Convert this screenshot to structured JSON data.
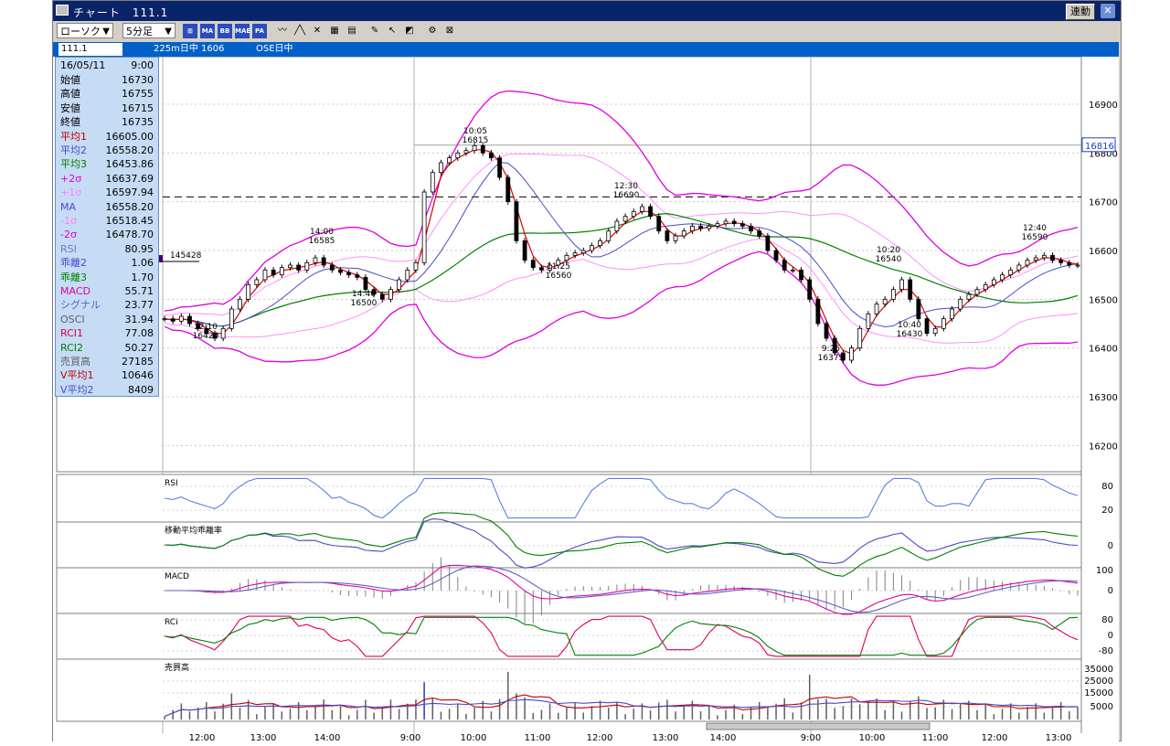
{
  "window": {
    "title": "チャート",
    "code": "111.1",
    "link_button": "連動",
    "close_icon": "close-icon"
  },
  "toolbar": {
    "chart_type": "ローソク",
    "period": "5分足",
    "buttons": [
      {
        "name": "indicator-icon",
        "label": "⊞"
      },
      {
        "name": "ma-button",
        "label": "MA"
      },
      {
        "name": "bb-button",
        "label": "BB"
      },
      {
        "name": "mae-button",
        "label": "MAE"
      },
      {
        "name": "pa-button",
        "label": "PA"
      },
      {
        "name": "trendline-icon",
        "label": "〰"
      },
      {
        "name": "zigzag-icon",
        "label": "╱╲"
      },
      {
        "name": "cross-icon",
        "label": "✕"
      },
      {
        "name": "fibo-icon",
        "label": "▦"
      },
      {
        "name": "grid-icon",
        "label": "▤"
      },
      {
        "name": "pen-icon",
        "label": "✎"
      },
      {
        "name": "cursor-icon",
        "label": "↖"
      },
      {
        "name": "eraser-icon",
        "label": "◩"
      },
      {
        "name": "tag-icon",
        "label": "⚙"
      },
      {
        "name": "delete-icon",
        "label": "⊠"
      }
    ]
  },
  "infobar": {
    "code": "111.1",
    "contract": "225m日中 1606",
    "session": "OSE日中"
  },
  "data_panel": {
    "date": "16/05/11",
    "time": "9:00",
    "rows": [
      {
        "k": "始値",
        "v": "16730",
        "c": "#000000"
      },
      {
        "k": "高値",
        "v": "16755",
        "c": "#000000"
      },
      {
        "k": "安値",
        "v": "16715",
        "c": "#000000"
      },
      {
        "k": "終値",
        "v": "16735",
        "c": "#000000"
      },
      {
        "k": "平均1",
        "v": "16605.00",
        "c": "#c00000"
      },
      {
        "k": "平均2",
        "v": "16558.20",
        "c": "#4a4ac8"
      },
      {
        "k": "平均3",
        "v": "16453.86",
        "c": "#008000"
      },
      {
        "k": "+2σ",
        "v": "16637.69",
        "c": "#e000e0"
      },
      {
        "k": "+1σ",
        "v": "16597.94",
        "c": "#ff80ff"
      },
      {
        "k": "MA",
        "v": "16558.20",
        "c": "#4a4ac8"
      },
      {
        "k": "-1σ",
        "v": "16518.45",
        "c": "#ff80ff"
      },
      {
        "k": "-2σ",
        "v": "16478.70",
        "c": "#e000e0"
      },
      {
        "k": "RSI",
        "v": "80.95",
        "c": "#6080c0"
      },
      {
        "k": "乖離2",
        "v": "1.06",
        "c": "#4a4ac8"
      },
      {
        "k": "乖離3",
        "v": "1.70",
        "c": "#008000"
      },
      {
        "k": "MACD",
        "v": "55.71",
        "c": "#e000a0"
      },
      {
        "k": "シグナル",
        "v": "23.77",
        "c": "#6060c0"
      },
      {
        "k": "OSCI",
        "v": "31.94",
        "c": "#606060"
      },
      {
        "k": "RCI1",
        "v": "77.08",
        "c": "#e00040"
      },
      {
        "k": "RCI2",
        "v": "50.27",
        "c": "#008000"
      },
      {
        "k": "売買高",
        "v": "27185",
        "c": "#606060"
      },
      {
        "k": "V平均1",
        "v": "10646",
        "c": "#c00000"
      },
      {
        "k": "V平均2",
        "v": "8409",
        "c": "#4a4ac8"
      }
    ]
  },
  "chart_data": {
    "type": "candlestick",
    "price_axis": {
      "ticks": [
        16200,
        16300,
        16400,
        16500,
        16600,
        16700,
        16800,
        16900
      ],
      "range": [
        16150,
        16990
      ]
    },
    "current_price": "16816",
    "dashed_level": 16710,
    "volume_marker": "145428",
    "time_labels": [
      "12:00",
      "13:00",
      "14:00",
      "9:00",
      "10:00",
      "11:00",
      "12:00",
      "13:00",
      "14:00",
      "9:00",
      "10:00",
      "11:00",
      "12:00",
      "13:00"
    ],
    "annotations": [
      {
        "time": "12:10",
        "price": "16420"
      },
      {
        "time": "14:00",
        "price": "16585"
      },
      {
        "time": "14:40",
        "price": "16500"
      },
      {
        "time": "10:05",
        "price": "16815"
      },
      {
        "time": "11:25",
        "price": "16560"
      },
      {
        "time": "12:30",
        "price": "16690"
      },
      {
        "time": "9:25",
        "price": "16375"
      },
      {
        "time": "10:20",
        "price": "16540"
      },
      {
        "time": "10:40",
        "price": "16430"
      },
      {
        "time": "12:40",
        "price": "16590"
      }
    ],
    "close_series": [
      16460,
      16455,
      16465,
      16450,
      16440,
      16430,
      16420,
      16440,
      16480,
      16500,
      16530,
      16540,
      16560,
      16550,
      16565,
      16570,
      16560,
      16575,
      16585,
      16570,
      16560,
      16555,
      16550,
      16545,
      16520,
      16510,
      16500,
      16520,
      16540,
      16560,
      16575,
      16720,
      16760,
      16780,
      16790,
      16800,
      16805,
      16815,
      16800,
      16790,
      16750,
      16700,
      16620,
      16580,
      16565,
      16560,
      16570,
      16580,
      16590,
      16595,
      16600,
      16610,
      16620,
      16640,
      16660,
      16670,
      16680,
      16690,
      16670,
      16640,
      16620,
      16630,
      16640,
      16650,
      16645,
      16650,
      16655,
      16660,
      16655,
      16650,
      16640,
      16630,
      16600,
      16580,
      16560,
      16560,
      16540,
      16500,
      16450,
      16420,
      16390,
      16375,
      16400,
      16440,
      16470,
      16490,
      16500,
      16520,
      16540,
      16500,
      16460,
      16430,
      16440,
      16460,
      16480,
      16500,
      16510,
      16520,
      16530,
      16540,
      16550,
      16560,
      16570,
      16580,
      16585,
      16590,
      16580,
      16575,
      16570,
      16570
    ],
    "panels": [
      {
        "name": "RSI",
        "ticks": [
          "80",
          "20"
        ]
      },
      {
        "name": "移動平均乖離率",
        "ticks": [
          "0"
        ]
      },
      {
        "name": "MACD",
        "ticks": [
          "100",
          "0"
        ]
      },
      {
        "name": "RCI",
        "ticks": [
          "80",
          "0",
          "-80"
        ]
      },
      {
        "name": "売買高",
        "ticks": [
          "35000",
          "25000",
          "15000",
          "5000"
        ]
      }
    ]
  }
}
